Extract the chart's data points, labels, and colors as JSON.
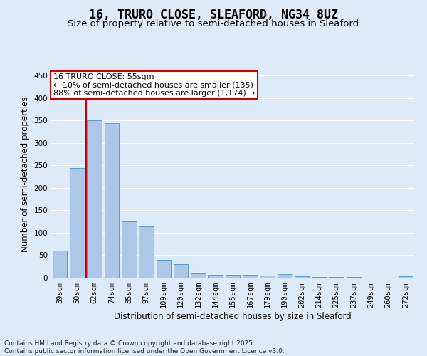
{
  "title": "16, TRURO CLOSE, SLEAFORD, NG34 8UZ",
  "subtitle": "Size of property relative to semi-detached houses in Sleaford",
  "xlabel": "Distribution of semi-detached houses by size in Sleaford",
  "ylabel": "Number of semi-detached properties",
  "categories": [
    "39sqm",
    "50sqm",
    "62sqm",
    "74sqm",
    "85sqm",
    "97sqm",
    "109sqm",
    "120sqm",
    "132sqm",
    "144sqm",
    "155sqm",
    "167sqm",
    "179sqm",
    "190sqm",
    "202sqm",
    "214sqm",
    "225sqm",
    "237sqm",
    "249sqm",
    "260sqm",
    "272sqm"
  ],
  "values": [
    60,
    245,
    350,
    345,
    125,
    115,
    40,
    30,
    9,
    6,
    7,
    7,
    5,
    8,
    3,
    1,
    1,
    1,
    0,
    0,
    3
  ],
  "bar_color": "#aec6e8",
  "bar_edge_color": "#5b9bd5",
  "background_color": "#ddeaf7",
  "grid_color": "#ffffff",
  "annotation_box_text": "16 TRURO CLOSE: 55sqm\n← 10% of semi-detached houses are smaller (135)\n88% of semi-detached houses are larger (1,174) →",
  "annotation_box_color": "#cc0000",
  "vline_color": "#cc0000",
  "ylim": [
    0,
    460
  ],
  "yticks": [
    0,
    50,
    100,
    150,
    200,
    250,
    300,
    350,
    400,
    450
  ],
  "footer_line1": "Contains HM Land Registry data © Crown copyright and database right 2025.",
  "footer_line2": "Contains public sector information licensed under the Open Government Licence v3.0.",
  "title_fontsize": 12,
  "subtitle_fontsize": 9.5,
  "axis_label_fontsize": 8.5,
  "tick_fontsize": 7.5,
  "annotation_fontsize": 8,
  "footer_fontsize": 6.5
}
